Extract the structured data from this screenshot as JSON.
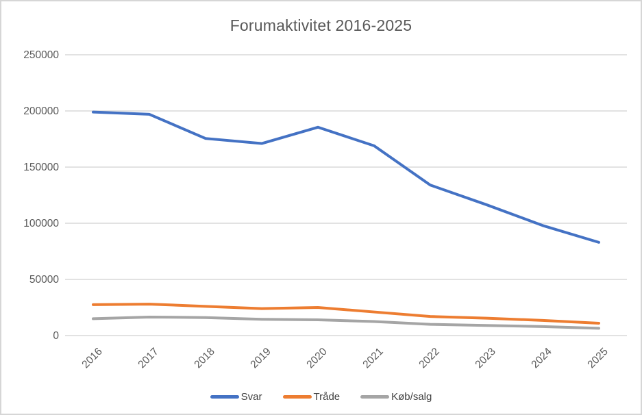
{
  "chart_data": {
    "type": "line",
    "title": "Forumaktivitet 2016-2025",
    "categories": [
      "2016",
      "2017",
      "2018",
      "2019",
      "2020",
      "2021",
      "2022",
      "2023",
      "2024",
      "2025"
    ],
    "series": [
      {
        "name": "Svar",
        "color": "#4472C4",
        "values": [
          199000,
          197000,
          175500,
          171000,
          185500,
          169000,
          134000,
          116500,
          98000,
          83000
        ]
      },
      {
        "name": "Tråde",
        "color": "#ED7D31",
        "values": [
          27500,
          28000,
          26000,
          24000,
          25000,
          21000,
          17000,
          15500,
          13500,
          11000
        ]
      },
      {
        "name": "Køb/salg",
        "color": "#A5A5A5",
        "values": [
          15000,
          16500,
          16000,
          14500,
          14000,
          12500,
          10000,
          9000,
          8000,
          6500
        ]
      }
    ],
    "xlabel": "",
    "ylabel": "",
    "ylim": [
      0,
      250000
    ],
    "ytick_step": 50000,
    "grid": "horizontal-only",
    "gridline_color": "#d9d9d9",
    "axis_label_color": "#595959",
    "legend_text_color": "#404040",
    "legend_position": "bottom",
    "x_label_rotation": -45
  }
}
